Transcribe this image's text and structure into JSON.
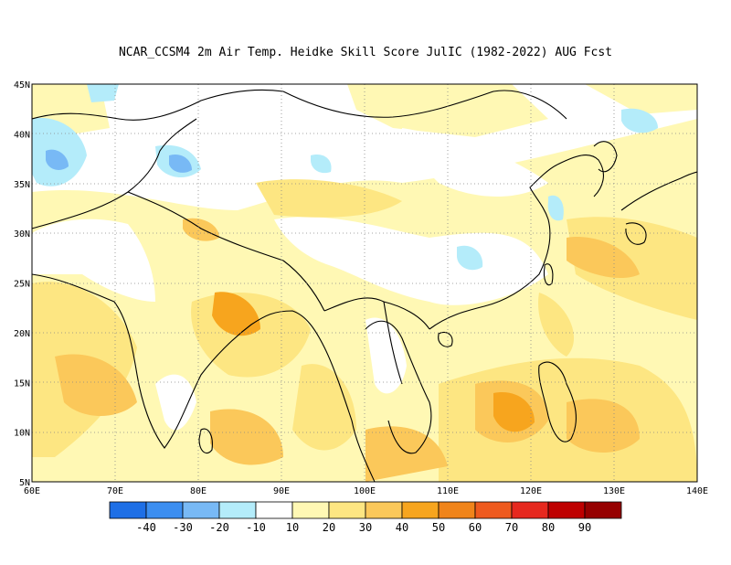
{
  "title": "NCAR_CCSM4  2m Air Temp. Heidke Skill Score JulIC (1982-2022) AUG Fcst",
  "map": {
    "lon_range": [
      60,
      140
    ],
    "lat_range": [
      5,
      45
    ],
    "lon_ticks": [
      "60E",
      "70E",
      "80E",
      "90E",
      "100E",
      "110E",
      "120E",
      "130E",
      "140E"
    ],
    "lat_ticks": [
      "5N",
      "10N",
      "15N",
      "20N",
      "25N",
      "30N",
      "35N",
      "40N",
      "45N"
    ],
    "gridlines": "dotted"
  },
  "colorbar": {
    "colors": [
      "#1e6fe6",
      "#3c8ef0",
      "#78b9f5",
      "#b4ecfa",
      "#ffffff",
      "#fff8b4",
      "#fde682",
      "#fbc85a",
      "#f7a51e",
      "#f0841a",
      "#ee5a1e",
      "#e6281e",
      "#be0000",
      "#960000"
    ],
    "labels": [
      "-40",
      "-30",
      "-20",
      "-10",
      "10",
      "20",
      "30",
      "40",
      "50",
      "60",
      "70",
      "80",
      "90"
    ]
  }
}
